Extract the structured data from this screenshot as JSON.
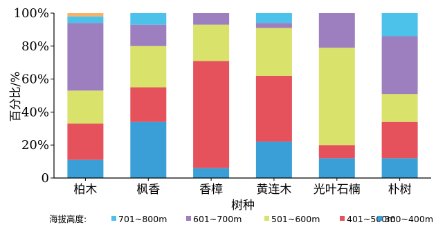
{
  "chart_data": {
    "type": "bar",
    "stacked": true,
    "categories": [
      "柏木",
      "枫香",
      "香樟",
      "黄连木",
      "光叶石楠",
      "朴树"
    ],
    "xlabel": "树种",
    "ylabel": "百分比/%",
    "ylim": [
      0,
      100
    ],
    "y_ticks": [
      "0",
      "20%",
      "40%",
      "60%",
      "80%",
      "100%"
    ],
    "legend_title": "海拔高度:",
    "legend_position": "bottom",
    "grid": false,
    "series": [
      {
        "name": "300~400m",
        "color": "#3a9fd6",
        "values": [
          11,
          34,
          6,
          22,
          12,
          12
        ]
      },
      {
        "name": "401~500m",
        "color": "#e5525c",
        "values": [
          22,
          21,
          65,
          40,
          8,
          22
        ]
      },
      {
        "name": "501~600m",
        "color": "#d9e26a",
        "values": [
          20,
          25,
          22,
          29,
          59,
          17
        ]
      },
      {
        "name": "601~700m",
        "color": "#9d7fbf",
        "values": [
          41,
          13,
          7,
          3,
          21,
          35
        ]
      },
      {
        "name": "701~800m",
        "color": "#4cc1ea",
        "values": [
          4,
          7,
          0,
          6,
          0,
          14
        ]
      },
      {
        "name": "",
        "color": "#f6b26b",
        "values": [
          2,
          0,
          0,
          0,
          0,
          0
        ]
      }
    ],
    "legend_order": [
      4,
      3,
      2,
      1,
      0
    ]
  }
}
